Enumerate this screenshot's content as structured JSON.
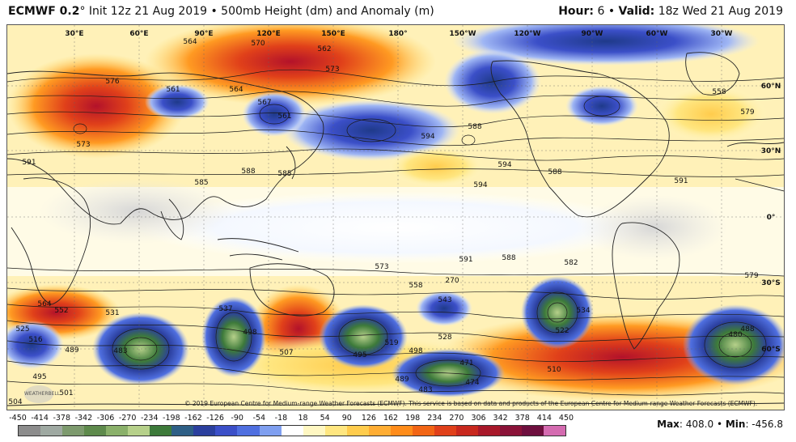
{
  "header": {
    "model": "ECMWF 0.2",
    "model_suffix": "°",
    "init_text": " Init 12z 21 Aug 2019 • 500mb Height (dm) and Anomaly (m)",
    "hour_label": "Hour:",
    "hour_value": " 6 • ",
    "valid_label": "Valid:",
    "valid_value": " 18z Wed 21 Aug 2019"
  },
  "map": {
    "longitude_labels": [
      "30°E",
      "60°E",
      "90°E",
      "120°E",
      "150°E",
      "180°",
      "150°W",
      "120°W",
      "90°W",
      "60°W",
      "30°W"
    ],
    "latitude_labels": [
      "60°N",
      "30°N",
      "0°",
      "30°S",
      "60°S"
    ],
    "contour_labels": [
      "564",
      "570",
      "562",
      "573",
      "576",
      "561",
      "564",
      "567",
      "561",
      "573",
      "588",
      "591",
      "585",
      "585",
      "594",
      "594",
      "588",
      "594",
      "591",
      "588",
      "573",
      "591",
      "588",
      "582",
      "579",
      "558",
      "543",
      "531",
      "525",
      "516",
      "564",
      "552",
      "537",
      "498",
      "489",
      "483",
      "495",
      "501",
      "507",
      "519",
      "528",
      "498",
      "522",
      "534",
      "510",
      "471",
      "474",
      "483",
      "489",
      "495",
      "504",
      "480",
      "488",
      "579",
      "558",
      "270"
    ],
    "copyright": "© 2019 European Centre for Medium-range Weather Forecasts (ECMWF). This service is based on data and products of the European Centre for Medium-range Weather Forecasts (ECMWF).",
    "logo_text": "WEATHERBELL"
  },
  "colorbar": {
    "tick_labels": [
      "-450",
      "-414",
      "-378",
      "-342",
      "-306",
      "-270",
      "-234",
      "-198",
      "-162",
      "-126",
      "-90",
      "-54",
      "-18",
      "18",
      "54",
      "90",
      "126",
      "162",
      "198",
      "234",
      "270",
      "306",
      "342",
      "378",
      "414",
      "450"
    ],
    "colors": [
      "#8c8c8c",
      "#9fa9a2",
      "#7d9a6e",
      "#5e8a4c",
      "#8ab06a",
      "#b6d08a",
      "#3d7a3a",
      "#2e5f86",
      "#2b3f9e",
      "#3b4fc8",
      "#4f6fe0",
      "#7f9ff0",
      "#ffffff",
      "#fff7c2",
      "#ffe680",
      "#ffcc4d",
      "#ffad33",
      "#ff8c1a",
      "#f26515",
      "#e0401a",
      "#c8281e",
      "#a8182a",
      "#8a1238",
      "#6e0f3e",
      "#d46bb0"
    ]
  },
  "maxmin": {
    "max_label": "Max",
    "max_value": ": 408.0 • ",
    "min_label": "Min",
    "min_value": ": -456.8"
  }
}
